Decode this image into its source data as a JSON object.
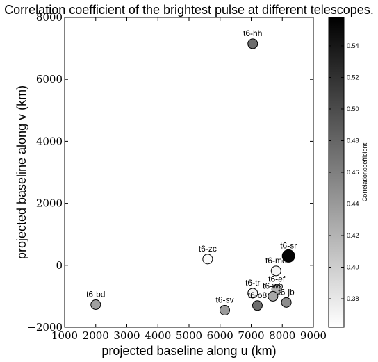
{
  "chart_data": {
    "type": "scatter",
    "title": "Correlation coefficient of the brightest pulse at different telescopes.",
    "xlabel": "projected baseline along u (km)",
    "ylabel": "projected baseline along v (km)",
    "xlim": [
      1000,
      9000
    ],
    "ylim": [
      -2000,
      8000
    ],
    "x_ticks": [
      "1000",
      "2000",
      "3000",
      "4000",
      "5000",
      "6000",
      "7000",
      "8000",
      "9000"
    ],
    "y_ticks": [
      "−2000",
      "0",
      "2000",
      "4000",
      "6000",
      "8000"
    ],
    "grid": false,
    "colorbar": {
      "label": "Correlationcoefficient",
      "range": [
        0.362,
        0.558
      ],
      "ticks": [
        "0.38",
        "0.40",
        "0.42",
        "0.44",
        "0.46",
        "0.48",
        "0.50",
        "0.52",
        "0.54"
      ],
      "colormap": [
        "#ffffff",
        "#000000"
      ]
    },
    "points": [
      {
        "label": "t6-hh",
        "x": 7050,
        "y": 7150,
        "value": 0.475
      },
      {
        "label": "t6-zc",
        "x": 5600,
        "y": 200,
        "value": 0.365
      },
      {
        "label": "t6-sr",
        "x": 8200,
        "y": 300,
        "value": 0.555
      },
      {
        "label": "t6-mo",
        "x": 7800,
        "y": -180,
        "value": 0.37
      },
      {
        "label": "t6-ef",
        "x": 7820,
        "y": -780,
        "value": 0.42
      },
      {
        "label": "t6-tr",
        "x": 7050,
        "y": -900,
        "value": 0.37
      },
      {
        "label": "t6-wb",
        "x": 7700,
        "y": -1000,
        "value": 0.43
      },
      {
        "label": "t6-jb",
        "x": 8130,
        "y": -1200,
        "value": 0.45
      },
      {
        "label": "t6-o8",
        "x": 7200,
        "y": -1300,
        "value": 0.475
      },
      {
        "label": "t6-sv",
        "x": 6150,
        "y": -1450,
        "value": 0.44
      },
      {
        "label": "t6-bd",
        "x": 2000,
        "y": -1270,
        "value": 0.435
      }
    ]
  }
}
